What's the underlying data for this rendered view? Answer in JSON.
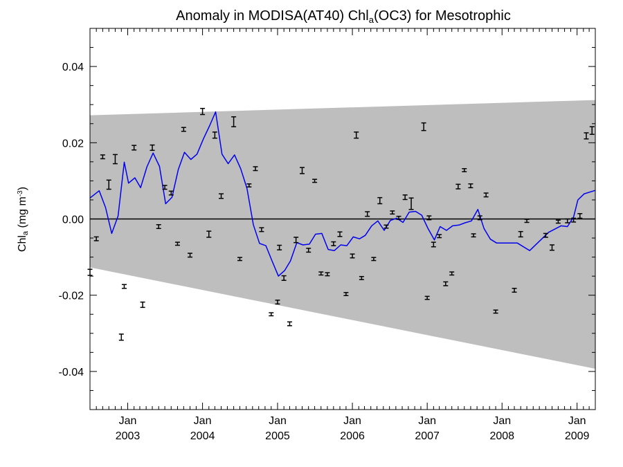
{
  "chart_data": {
    "type": "line",
    "title_main": "Anomaly in MODISA(AT40) Chl",
    "title_sub": "a",
    "title_tail": "(OC3) for Mesotrophic",
    "ylabel_main": "Chl",
    "ylabel_sub": "a",
    "ylabel_unit": " (mg m",
    "ylabel_sup": "-3",
    "ylabel_close": ")",
    "ylim": [
      -0.05,
      0.05
    ],
    "xlim": [
      "2002-07-01",
      "2009-03-31"
    ],
    "yticks": [
      {
        "value": 0.04,
        "label": "0.04"
      },
      {
        "value": 0.02,
        "label": "0.02"
      },
      {
        "value": 0.0,
        "label": "0.00"
      },
      {
        "value": -0.02,
        "label": "-0.02"
      },
      {
        "value": -0.04,
        "label": "-0.04"
      }
    ],
    "xticks": [
      {
        "date": "2003-01-01",
        "month": "Jan",
        "year": "2003"
      },
      {
        "date": "2004-01-01",
        "month": "Jan",
        "year": "2004"
      },
      {
        "date": "2005-01-01",
        "month": "Jan",
        "year": "2005"
      },
      {
        "date": "2006-01-01",
        "month": "Jan",
        "year": "2006"
      },
      {
        "date": "2007-01-01",
        "month": "Jan",
        "year": "2007"
      },
      {
        "date": "2008-01-01",
        "month": "Jan",
        "year": "2008"
      },
      {
        "date": "2009-01-01",
        "month": "Jan",
        "year": "2009"
      }
    ],
    "band": {
      "start_date": "2002-07-01",
      "end_date": "2009-03-31",
      "upper": [
        0.0272,
        0.0312
      ],
      "lower": [
        -0.0127,
        -0.0393
      ],
      "color": "#bebebe"
    },
    "zero_line": 0.0,
    "line_color": "#0000ee",
    "errorbar_color": "#000000",
    "series": [
      {
        "kind": "line",
        "points": [
          [
            "2002-07-01",
            0.0055
          ],
          [
            "2002-08-15",
            0.0074
          ],
          [
            "2002-09-15",
            0.003
          ],
          [
            "2002-10-15",
            -0.0038
          ],
          [
            "2002-11-15",
            0.0008
          ],
          [
            "2002-12-15",
            0.0149
          ],
          [
            "2003-01-05",
            0.0094
          ],
          [
            "2003-02-05",
            0.0108
          ],
          [
            "2003-03-05",
            0.0082
          ],
          [
            "2003-04-05",
            0.0137
          ],
          [
            "2003-05-05",
            0.0173
          ],
          [
            "2003-06-05",
            0.0138
          ],
          [
            "2003-07-05",
            0.004
          ],
          [
            "2003-08-05",
            0.0057
          ],
          [
            "2003-09-05",
            0.013
          ],
          [
            "2003-10-05",
            0.0175
          ],
          [
            "2003-11-05",
            0.0156
          ],
          [
            "2003-12-05",
            0.017
          ],
          [
            "2004-01-05",
            0.021
          ],
          [
            "2004-02-05",
            0.0245
          ],
          [
            "2004-03-05",
            0.0281
          ],
          [
            "2004-04-05",
            0.017
          ],
          [
            "2004-05-05",
            0.0145
          ],
          [
            "2004-06-05",
            0.0168
          ],
          [
            "2004-07-05",
            0.0132
          ],
          [
            "2004-08-05",
            0.008
          ],
          [
            "2004-09-05",
            -0.0015
          ],
          [
            "2004-10-05",
            -0.0064
          ],
          [
            "2004-11-05",
            -0.007
          ],
          [
            "2004-12-05",
            -0.011
          ],
          [
            "2005-01-05",
            -0.015
          ],
          [
            "2005-02-05",
            -0.0135
          ],
          [
            "2005-03-05",
            -0.011
          ],
          [
            "2005-04-05",
            -0.0062
          ],
          [
            "2005-05-05",
            -0.0068
          ],
          [
            "2005-06-05",
            -0.0066
          ],
          [
            "2005-07-05",
            -0.004
          ],
          [
            "2005-08-05",
            -0.0038
          ],
          [
            "2005-09-05",
            -0.008
          ],
          [
            "2005-10-05",
            -0.0083
          ],
          [
            "2005-11-05",
            -0.0068
          ],
          [
            "2005-12-05",
            -0.007
          ],
          [
            "2006-01-05",
            -0.0047
          ],
          [
            "2006-02-05",
            -0.0052
          ],
          [
            "2006-03-05",
            -0.0043
          ],
          [
            "2006-04-05",
            -0.0018
          ],
          [
            "2006-05-05",
            -0.0005
          ],
          [
            "2006-06-05",
            -0.003
          ],
          [
            "2006-07-05",
            -0.0004
          ],
          [
            "2006-08-05",
            0.0002
          ],
          [
            "2006-09-05",
            -0.0009
          ],
          [
            "2006-10-05",
            0.0018
          ],
          [
            "2006-11-05",
            0.002
          ],
          [
            "2006-12-05",
            0.001
          ],
          [
            "2007-01-05",
            -0.0025
          ],
          [
            "2007-02-05",
            -0.0055
          ],
          [
            "2007-03-05",
            -0.002
          ],
          [
            "2007-04-05",
            -0.003
          ],
          [
            "2007-05-05",
            -0.0018
          ],
          [
            "2007-06-05",
            -0.0016
          ],
          [
            "2007-07-05",
            -0.001
          ],
          [
            "2007-08-05",
            -0.0005
          ],
          [
            "2007-09-05",
            0.0025
          ],
          [
            "2007-10-05",
            -0.0025
          ],
          [
            "2007-11-05",
            -0.0053
          ],
          [
            "2007-12-05",
            -0.0063
          ],
          [
            "2008-03-15",
            -0.0063
          ],
          [
            "2008-05-15",
            -0.0083
          ],
          [
            "2008-08-15",
            -0.0035
          ],
          [
            "2008-10-15",
            -0.0018
          ],
          [
            "2008-11-15",
            -0.002
          ],
          [
            "2008-12-15",
            0.0005
          ],
          [
            "2009-01-05",
            0.005
          ],
          [
            "2009-02-05",
            0.0066
          ],
          [
            "2009-03-31",
            0.0075
          ]
        ]
      },
      {
        "kind": "errorbar",
        "points": [
          [
            "2002-07-01",
            -0.014,
            0.0008
          ],
          [
            "2002-08-01",
            -0.0052,
            0.0005
          ],
          [
            "2002-09-01",
            0.0163,
            0.0005
          ],
          [
            "2002-10-01",
            0.009,
            0.0012
          ],
          [
            "2002-11-01",
            0.0157,
            0.0012
          ],
          [
            "2002-12-01",
            -0.031,
            0.0008
          ],
          [
            "2002-12-15",
            -0.0177,
            0.0005
          ],
          [
            "2003-02-01",
            0.0187,
            0.0006
          ],
          [
            "2003-03-15",
            -0.0225,
            0.0007
          ],
          [
            "2003-05-01",
            0.0187,
            0.0007
          ],
          [
            "2003-06-01",
            -0.002,
            0.0005
          ],
          [
            "2003-07-01",
            0.0083,
            0.0005
          ],
          [
            "2003-08-01",
            0.0068,
            0.0005
          ],
          [
            "2003-09-01",
            -0.0065,
            0.0004
          ],
          [
            "2003-10-01",
            0.0235,
            0.0005
          ],
          [
            "2003-11-01",
            -0.0095,
            0.0005
          ],
          [
            "2004-01-01",
            0.0282,
            0.0008
          ],
          [
            "2004-02-01",
            -0.004,
            0.0008
          ],
          [
            "2004-03-01",
            0.022,
            0.0008
          ],
          [
            "2004-04-01",
            0.006,
            0.0006
          ],
          [
            "2004-06-01",
            0.0255,
            0.0013
          ],
          [
            "2004-07-01",
            -0.0105,
            0.0004
          ],
          [
            "2004-08-15",
            0.0088,
            0.0004
          ],
          [
            "2004-09-15",
            0.0132,
            0.0005
          ],
          [
            "2004-10-15",
            -0.0028,
            0.0005
          ],
          [
            "2004-12-01",
            -0.025,
            0.0004
          ],
          [
            "2005-01-01",
            -0.0218,
            0.0005
          ],
          [
            "2005-01-10",
            -0.0075,
            0.0006
          ],
          [
            "2005-02-01",
            -0.0155,
            0.0006
          ],
          [
            "2005-03-01",
            -0.0275,
            0.0005
          ],
          [
            "2005-04-01",
            -0.0055,
            0.0007
          ],
          [
            "2005-05-01",
            0.0127,
            0.0008
          ],
          [
            "2005-06-01",
            -0.0082,
            0.0005
          ],
          [
            "2005-07-01",
            0.01,
            0.0004
          ],
          [
            "2005-08-01",
            -0.0143,
            0.0004
          ],
          [
            "2005-09-01",
            -0.0145,
            0.0004
          ],
          [
            "2005-10-01",
            -0.0065,
            0.0005
          ],
          [
            "2005-11-01",
            -0.004,
            0.0006
          ],
          [
            "2005-12-01",
            -0.0197,
            0.0004
          ],
          [
            "2006-01-01",
            -0.0097,
            0.0005
          ],
          [
            "2006-01-20",
            0.022,
            0.0008
          ],
          [
            "2006-02-15",
            -0.0155,
            0.0004
          ],
          [
            "2006-03-15",
            0.0013,
            0.0006
          ],
          [
            "2006-04-15",
            -0.0105,
            0.0004
          ],
          [
            "2006-05-15",
            0.0048,
            0.0008
          ],
          [
            "2006-06-15",
            -0.002,
            0.0004
          ],
          [
            "2006-07-15",
            0.0017,
            0.0004
          ],
          [
            "2006-08-15",
            0.0003,
            0.0004
          ],
          [
            "2006-09-15",
            0.0057,
            0.0006
          ],
          [
            "2006-10-15",
            0.004,
            0.0015
          ],
          [
            "2006-12-15",
            0.0242,
            0.001
          ],
          [
            "2007-01-01",
            -0.0207,
            0.0004
          ],
          [
            "2007-01-10",
            0.0003,
            0.0005
          ],
          [
            "2007-02-01",
            -0.0067,
            0.0006
          ],
          [
            "2007-03-01",
            -0.0045,
            0.0004
          ],
          [
            "2007-04-01",
            -0.017,
            0.0005
          ],
          [
            "2007-05-01",
            -0.0143,
            0.0004
          ],
          [
            "2007-06-01",
            0.0085,
            0.0006
          ],
          [
            "2007-07-01",
            0.0128,
            0.0004
          ],
          [
            "2007-08-01",
            0.0087,
            0.0005
          ],
          [
            "2007-08-15",
            -0.0043,
            0.0004
          ],
          [
            "2007-09-15",
            0.0003,
            0.0005
          ],
          [
            "2007-10-15",
            0.0063,
            0.0005
          ],
          [
            "2007-12-01",
            -0.0243,
            0.0004
          ],
          [
            "2008-03-01",
            -0.0187,
            0.0005
          ],
          [
            "2008-04-01",
            -0.004,
            0.0007
          ],
          [
            "2008-05-01",
            -0.0005,
            0.0004
          ],
          [
            "2008-08-01",
            -0.0043,
            0.0005
          ],
          [
            "2008-09-01",
            -0.0075,
            0.0007
          ],
          [
            "2008-10-01",
            -0.0007,
            0.0004
          ],
          [
            "2008-11-15",
            -0.0005,
            0.0005
          ],
          [
            "2008-12-15",
            -0.0003,
            0.0005
          ],
          [
            "2009-01-15",
            0.0008,
            0.0006
          ],
          [
            "2009-02-15",
            0.0218,
            0.0008
          ],
          [
            "2009-03-15",
            0.0232,
            0.001
          ]
        ]
      }
    ]
  }
}
